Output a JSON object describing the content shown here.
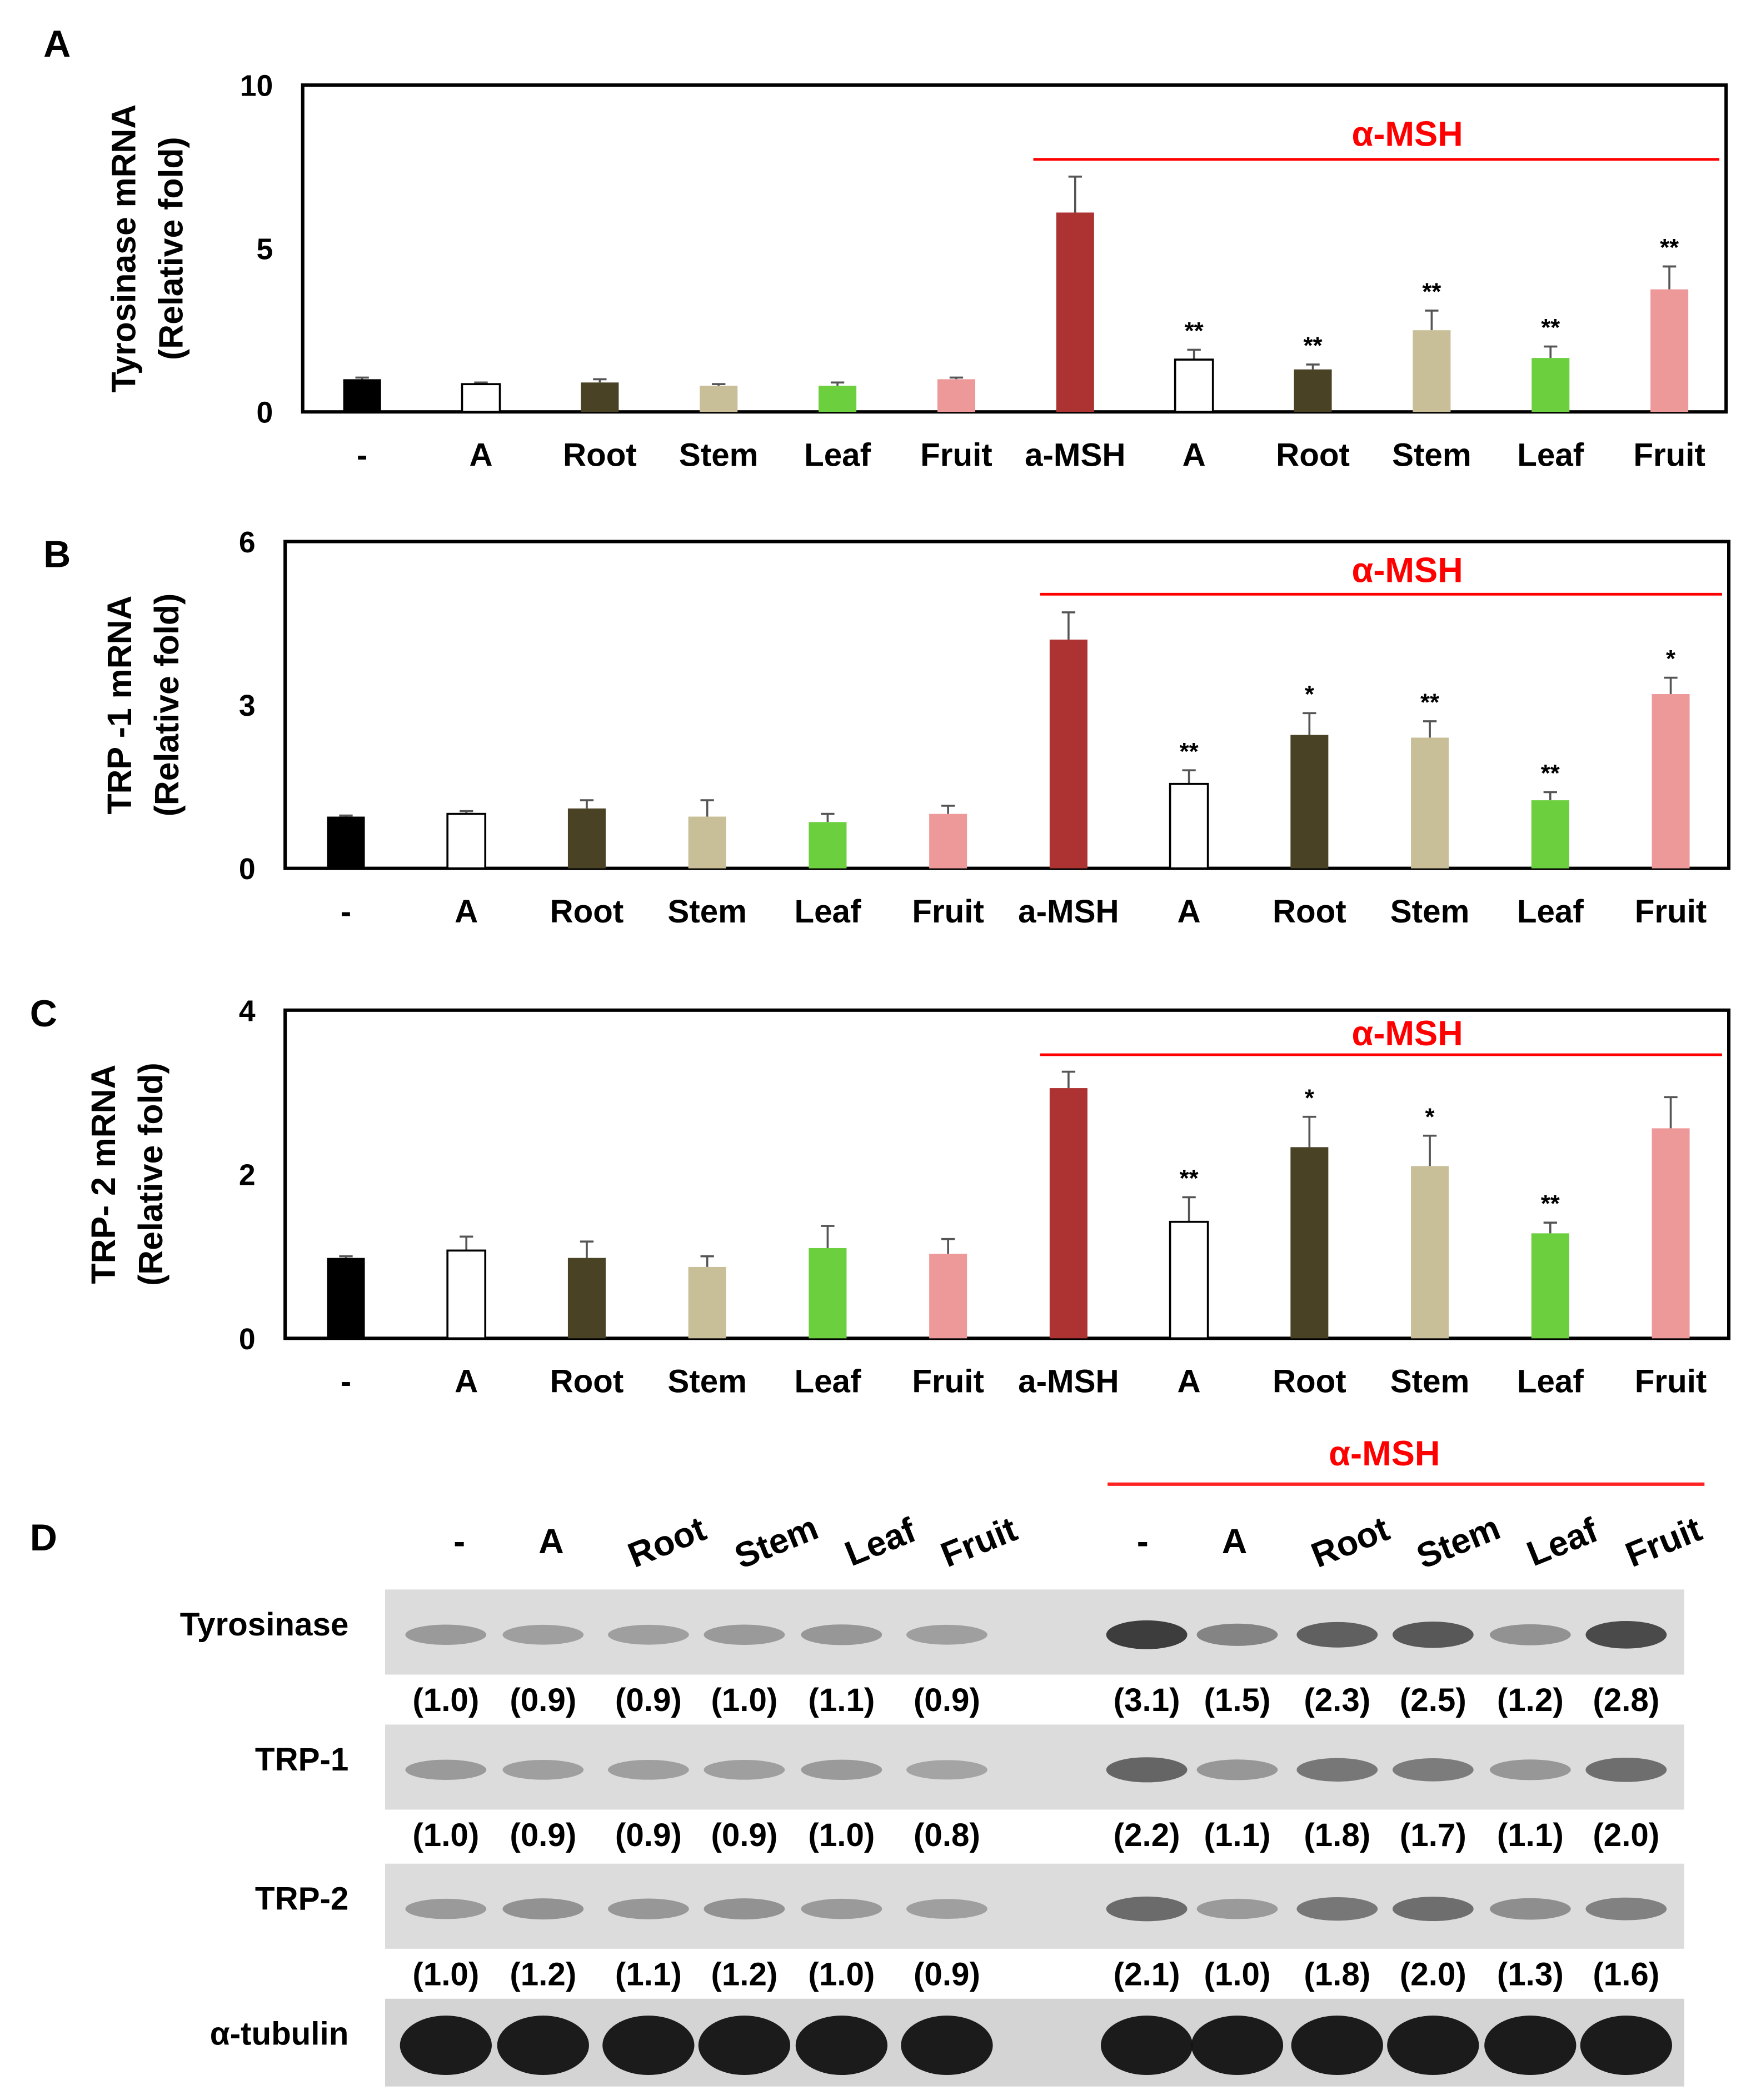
{
  "panel_labels": {
    "a": "A",
    "b": "B",
    "c": "C",
    "d": "D"
  },
  "treatment_label": "α-MSH",
  "colors": {
    "control": "#000000",
    "A": "#ffffff",
    "Root": "#4a4225",
    "Stem": "#c8bf98",
    "Leaf": "#6ccf3e",
    "Fruit": "#ee9999",
    "aMSH": "#ad3333",
    "msh_line": "#ff0000"
  },
  "chart_data": [
    {
      "type": "bar",
      "panel": "A",
      "ylabel": [
        "Tyrosinase  mRNA",
        "(Relative fold)"
      ],
      "ylim": [
        0,
        10
      ],
      "yticks": [
        "0",
        "5",
        "10"
      ],
      "categories": [
        "-",
        "A",
        "Root",
        "Stem",
        "Leaf",
        "Fruit",
        "a-MSH",
        "A",
        "Root",
        "Stem",
        "Leaf",
        "Fruit"
      ],
      "values": [
        1.0,
        0.85,
        0.9,
        0.8,
        0.8,
        1.0,
        6.1,
        1.6,
        1.3,
        2.5,
        1.65,
        3.75
      ],
      "errors": [
        0.05,
        0.05,
        0.1,
        0.05,
        0.1,
        0.05,
        1.1,
        0.3,
        0.15,
        0.6,
        0.35,
        0.7
      ],
      "significance": [
        "",
        "",
        "",
        "",
        "",
        "",
        "",
        "**",
        "**",
        "**",
        "**",
        "**"
      ]
    },
    {
      "type": "bar",
      "panel": "B",
      "ylabel": [
        "TRP -1 mRNA",
        "(Relative fold)"
      ],
      "ylim": [
        0,
        6
      ],
      "yticks": [
        "0",
        "3",
        "6"
      ],
      "categories": [
        "-",
        "A",
        "Root",
        "Stem",
        "Leaf",
        "Fruit",
        "a-MSH",
        "A",
        "Root",
        "Stem",
        "Leaf",
        "Fruit"
      ],
      "values": [
        0.95,
        1.0,
        1.1,
        0.95,
        0.85,
        1.0,
        4.2,
        1.55,
        2.45,
        2.4,
        1.25,
        3.2
      ],
      "errors": [
        0.02,
        0.05,
        0.15,
        0.3,
        0.15,
        0.15,
        0.5,
        0.25,
        0.4,
        0.3,
        0.15,
        0.3
      ],
      "significance": [
        "",
        "",
        "",
        "",
        "",
        "",
        "",
        "**",
        "*",
        "**",
        "**",
        "*"
      ]
    },
    {
      "type": "bar",
      "panel": "C",
      "ylabel": [
        "TRP- 2 mRNA",
        "(Relative fold)"
      ],
      "ylim": [
        0,
        4
      ],
      "yticks": [
        "0",
        "2",
        "4"
      ],
      "categories": [
        "-",
        "A",
        "Root",
        "Stem",
        "Leaf",
        "Fruit",
        "a-MSH",
        "A",
        "Root",
        "Stem",
        "Leaf",
        "Fruit"
      ],
      "values": [
        0.98,
        1.07,
        0.98,
        0.87,
        1.1,
        1.03,
        3.05,
        1.42,
        2.33,
        2.1,
        1.28,
        2.56
      ],
      "errors": [
        0.02,
        0.17,
        0.2,
        0.13,
        0.27,
        0.18,
        0.2,
        0.3,
        0.37,
        0.37,
        0.13,
        0.38
      ],
      "significance": [
        "",
        "",
        "",
        "",
        "",
        "",
        "",
        "**",
        "*",
        "*",
        "**",
        ""
      ]
    }
  ],
  "blot": {
    "lanes": [
      "-",
      "A",
      "Root",
      "Stem",
      "Leaf",
      "Fruit",
      "-",
      "A",
      "Root",
      "Stem",
      "Leaf",
      "Fruit"
    ],
    "rows": [
      {
        "name": "Tyrosinase",
        "values": [
          "(1.0)",
          "(0.9)",
          "(0.9)",
          "(1.0)",
          "(1.1)",
          "(0.9)",
          "(3.1)",
          "(1.5)",
          "(2.3)",
          "(2.5)",
          "(1.2)",
          "(2.8)"
        ],
        "intensity": [
          1.0,
          0.9,
          0.9,
          1.0,
          1.1,
          0.9,
          3.1,
          1.5,
          2.3,
          2.5,
          1.2,
          2.8
        ]
      },
      {
        "name": "TRP-1",
        "values": [
          "(1.0)",
          "(0.9)",
          "(0.9)",
          "(0.9)",
          "(1.0)",
          "(0.8)",
          "(2.2)",
          "(1.1)",
          "(1.8)",
          "(1.7)",
          "(1.1)",
          "(2.0)"
        ],
        "intensity": [
          1.0,
          0.9,
          0.9,
          0.9,
          1.0,
          0.8,
          2.2,
          1.1,
          1.8,
          1.7,
          1.1,
          2.0
        ]
      },
      {
        "name": "TRP-2",
        "values": [
          "(1.0)",
          "(1.2)",
          "(1.1)",
          "(1.2)",
          "(1.0)",
          "(0.9)",
          "(2.1)",
          "(1.0)",
          "(1.8)",
          "(2.0)",
          "(1.3)",
          "(1.6)"
        ],
        "intensity": [
          1.0,
          1.2,
          1.1,
          1.2,
          1.0,
          0.9,
          2.1,
          1.0,
          1.8,
          2.0,
          1.3,
          1.6
        ]
      },
      {
        "name": "α-tubulin",
        "values": [],
        "intensity": [
          6,
          6,
          6,
          6,
          6,
          6,
          6,
          6,
          6,
          6,
          6,
          6
        ]
      }
    ]
  }
}
